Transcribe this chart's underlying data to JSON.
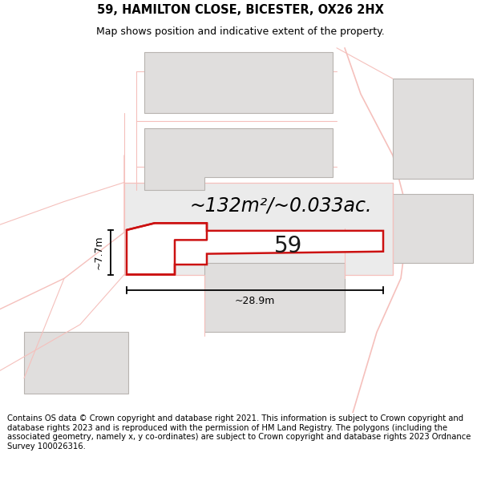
{
  "title_line1": "59, HAMILTON CLOSE, BICESTER, OX26 2HX",
  "title_line2": "Map shows position and indicative extent of the property.",
  "footer": "Contains OS data © Crown copyright and database right 2021. This information is subject to Crown copyright and database rights 2023 and is reproduced with the permission of HM Land Registry. The polygons (including the associated geometry, namely x, y co-ordinates) are subject to Crown copyright and database rights 2023 Ordnance Survey 100026316.",
  "area_text": "~132m²/~0.033ac.",
  "width_text": "~28.9m",
  "height_text": "~7.7m",
  "number_text": "59",
  "bg_color": "#ffffff",
  "map_bg": "#ffffff",
  "highlight_color": "#cc1111",
  "neighbor_fill": "#e0dedd",
  "road_color": "#f5c0bc",
  "title_fontsize": 10.5,
  "subtitle_fontsize": 9,
  "footer_fontsize": 7.2,
  "area_fontsize": 17,
  "number_fontsize": 20,
  "annot_fontsize": 9
}
